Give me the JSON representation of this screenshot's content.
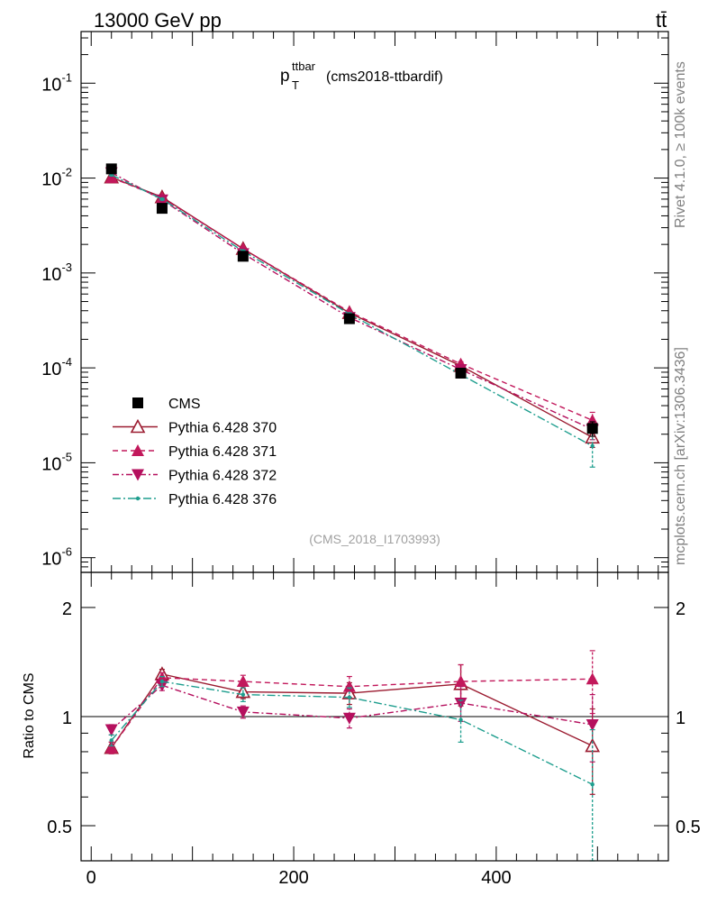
{
  "header": {
    "beam": "13000 GeV pp",
    "process": "tt̄"
  },
  "side_labels": {
    "rivet": "Rivet 4.1.0, ≥ 100k events",
    "mcplots": "mcplots.cern.ch [arXiv:1306.3436]"
  },
  "watermark": "(CMS_2018_I1703993)",
  "colors": {
    "cms": "#000000",
    "p370": "#9b1b30",
    "p371": "#c2185b",
    "p372": "#b5105e",
    "p376": "#1e9e8e"
  },
  "chart_data": [
    {
      "type": "line",
      "title_main": "p",
      "title_sub": "T",
      "title_sup": "ttbar",
      "title_rest": "(cms2018-ttbardif)",
      "yscale": "log",
      "ylim": [
        7e-07,
        0.35
      ],
      "xlim": [
        -10,
        570
      ],
      "x": [
        20,
        70,
        150,
        255,
        365,
        495
      ],
      "ytick_labels": [
        "10^-6",
        "10^-5",
        "10^-4",
        "10^-3",
        "10^-2",
        "10^-1"
      ],
      "ytick_values": [
        1e-06,
        1e-05,
        0.0001,
        0.001,
        0.01,
        0.1
      ],
      "legend_position": "bottom-left",
      "series": [
        {
          "key": "cms",
          "name": "CMS",
          "marker": "square",
          "dash": "none",
          "values": [
            0.0125,
            0.0048,
            0.0015,
            0.00033,
            8.8e-05,
            2.3e-05
          ],
          "err": [
            0.0006,
            0.0002,
            7e-05,
            2e-05,
            8e-06,
            4e-06
          ]
        },
        {
          "key": "p370",
          "name": "Pythia 6.428 370",
          "marker": "triangle-open",
          "dash": "none",
          "values": [
            0.0102,
            0.0063,
            0.0018,
            0.00038,
            0.000105,
            1.85e-05
          ],
          "err": [
            0.0002,
            0.00012,
            4e-05,
            1e-05,
            6e-06,
            4e-06
          ]
        },
        {
          "key": "p371",
          "name": "Pythia 6.428 371",
          "marker": "triangle-up",
          "dash": "6,4",
          "values": [
            0.0101,
            0.0062,
            0.0018,
            0.00039,
            0.00011,
            2.8e-05
          ],
          "err": [
            0.0002,
            0.00012,
            4e-05,
            1e-05,
            6e-06,
            6e-06
          ]
        },
        {
          "key": "p372",
          "name": "Pythia 6.428 372",
          "marker": "triangle-down",
          "dash": "7,3,2,3",
          "values": [
            0.0114,
            0.0059,
            0.0016,
            0.00034,
            9.6e-05,
            2.25e-05
          ],
          "err": [
            0.0002,
            0.00012,
            4e-05,
            1e-05,
            6e-06,
            5e-06
          ]
        },
        {
          "key": "p376",
          "name": "Pythia 6.428 376",
          "marker": "dot",
          "dash": "9,3,2,3",
          "values": [
            0.0108,
            0.006,
            0.0017,
            0.00037,
            8.5e-05,
            1.5e-05
          ],
          "err": [
            0.0002,
            0.00012,
            4e-05,
            1e-05,
            6e-06,
            6e-06
          ]
        }
      ]
    },
    {
      "type": "line",
      "ylabel": "Ratio to CMS",
      "yscale": "log",
      "ylim": [
        0.4,
        2.5
      ],
      "xlim": [
        -10,
        570
      ],
      "x": [
        20,
        70,
        150,
        255,
        365,
        495
      ],
      "ytick_labels": [
        "0.5",
        "1",
        "2"
      ],
      "ytick_values": [
        0.5,
        1,
        2
      ],
      "xtick_labels": [
        "0",
        "200",
        "400"
      ],
      "xtick_values": [
        0,
        200,
        400
      ],
      "reference_line": 1,
      "series": [
        {
          "key": "p370",
          "name": "Pythia 6.428 370",
          "marker": "triangle-open",
          "dash": "none",
          "values": [
            0.82,
            1.31,
            1.17,
            1.16,
            1.23,
            0.83
          ],
          "err": [
            0.03,
            0.04,
            0.05,
            0.08,
            0.16,
            0.22
          ]
        },
        {
          "key": "p371",
          "name": "Pythia 6.428 371",
          "marker": "triangle-up",
          "dash": "6,4",
          "values": [
            0.82,
            1.28,
            1.25,
            1.21,
            1.25,
            1.27
          ],
          "err": [
            0.03,
            0.04,
            0.05,
            0.08,
            0.14,
            0.25
          ]
        },
        {
          "key": "p372",
          "name": "Pythia 6.428 372",
          "marker": "triangle-down",
          "dash": "7,3,2,3",
          "values": [
            0.92,
            1.22,
            1.03,
            0.99,
            1.09,
            0.95
          ],
          "err": [
            0.03,
            0.04,
            0.04,
            0.06,
            0.12,
            0.2
          ]
        },
        {
          "key": "p376",
          "name": "Pythia 6.428 376",
          "marker": "dot",
          "dash": "9,3,2,3",
          "values": [
            0.86,
            1.25,
            1.15,
            1.13,
            0.98,
            0.65
          ],
          "err": [
            0.03,
            0.04,
            0.05,
            0.07,
            0.13,
            0.27
          ]
        }
      ]
    }
  ]
}
